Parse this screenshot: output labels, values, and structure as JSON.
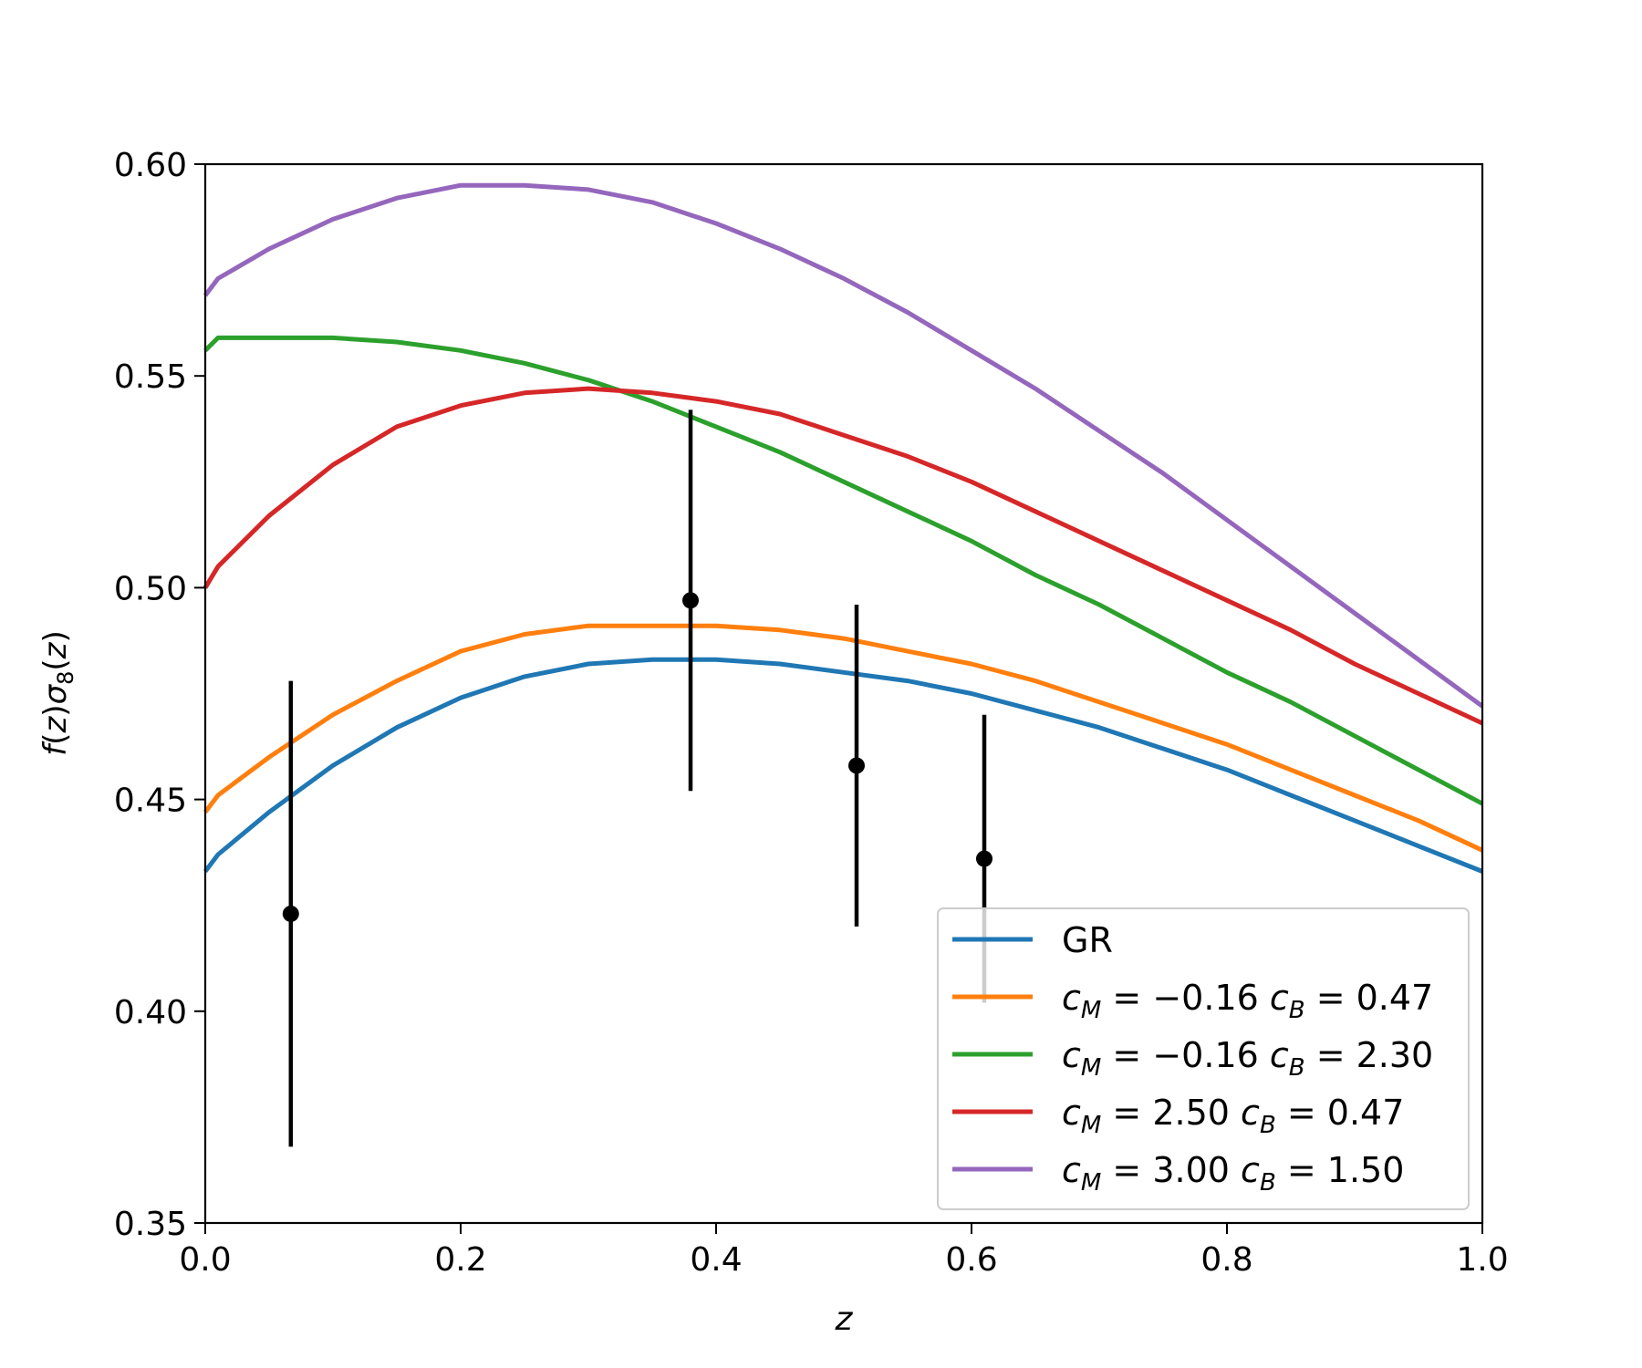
{
  "chart_data": {
    "type": "line",
    "xlabel": "z",
    "ylabel": "f(z)σ8(z)",
    "xlim": [
      0.0,
      1.0
    ],
    "ylim": [
      0.35,
      0.6
    ],
    "grid": false,
    "legend_position": "lower-right",
    "x_ticks": [
      "0.0",
      "0.2",
      "0.4",
      "0.6",
      "0.8",
      "1.0"
    ],
    "y_ticks": [
      "0.35",
      "0.40",
      "0.45",
      "0.50",
      "0.55",
      "0.60"
    ],
    "x": [
      0.0,
      0.01,
      0.05,
      0.1,
      0.15,
      0.2,
      0.25,
      0.3,
      0.35,
      0.4,
      0.45,
      0.5,
      0.55,
      0.6,
      0.65,
      0.7,
      0.75,
      0.8,
      0.85,
      0.9,
      0.95,
      1.0
    ],
    "series": [
      {
        "name": "GR",
        "label": {
          "type": "plain",
          "text": "GR"
        },
        "color": "#1f77b4",
        "values": [
          0.433,
          0.437,
          0.447,
          0.458,
          0.467,
          0.474,
          0.479,
          0.482,
          0.483,
          0.483,
          0.482,
          0.48,
          0.478,
          0.475,
          0.471,
          0.467,
          0.462,
          0.457,
          0.451,
          0.445,
          0.439,
          0.433
        ]
      },
      {
        "name": "c_M = −0.16 c_B = 0.47",
        "label": {
          "type": "math",
          "cm": "−0.16",
          "cb": "0.47"
        },
        "color": "#ff7f0e",
        "values": [
          0.447,
          0.451,
          0.46,
          0.47,
          0.478,
          0.485,
          0.489,
          0.491,
          0.491,
          0.491,
          0.49,
          0.488,
          0.485,
          0.482,
          0.478,
          0.473,
          0.468,
          0.463,
          0.457,
          0.451,
          0.445,
          0.438
        ]
      },
      {
        "name": "c_M = −0.16 c_B = 2.30",
        "label": {
          "type": "math",
          "cm": "−0.16",
          "cb": "2.30"
        },
        "color": "#2ca02c",
        "values": [
          0.556,
          0.559,
          0.559,
          0.559,
          0.558,
          0.556,
          0.553,
          0.549,
          0.544,
          0.538,
          0.532,
          0.525,
          0.518,
          0.511,
          0.503,
          0.496,
          0.488,
          0.48,
          0.473,
          0.465,
          0.457,
          0.449
        ]
      },
      {
        "name": "c_M = 2.50 c_B = 0.47",
        "label": {
          "type": "math",
          "cm": "2.50",
          "cb": "0.47"
        },
        "color": "#d62728",
        "values": [
          0.5,
          0.505,
          0.517,
          0.529,
          0.538,
          0.543,
          0.546,
          0.547,
          0.546,
          0.544,
          0.541,
          0.536,
          0.531,
          0.525,
          0.518,
          0.511,
          0.504,
          0.497,
          0.49,
          0.482,
          0.475,
          0.468
        ]
      },
      {
        "name": "c_M = 3.00 c_B = 1.50",
        "label": {
          "type": "math",
          "cm": "3.00",
          "cb": "1.50"
        },
        "color": "#9467bd",
        "values": [
          0.569,
          0.573,
          0.58,
          0.587,
          0.592,
          0.595,
          0.595,
          0.594,
          0.591,
          0.586,
          0.58,
          0.573,
          0.565,
          0.556,
          0.547,
          0.537,
          0.527,
          0.516,
          0.505,
          0.494,
          0.483,
          0.472
        ]
      }
    ],
    "data_points": {
      "color": "#000000",
      "points": [
        {
          "x": 0.067,
          "y": 0.423,
          "err": 0.055
        },
        {
          "x": 0.38,
          "y": 0.497,
          "err": 0.045
        },
        {
          "x": 0.51,
          "y": 0.458,
          "err": 0.038
        },
        {
          "x": 0.61,
          "y": 0.436,
          "err": 0.034
        }
      ]
    }
  }
}
